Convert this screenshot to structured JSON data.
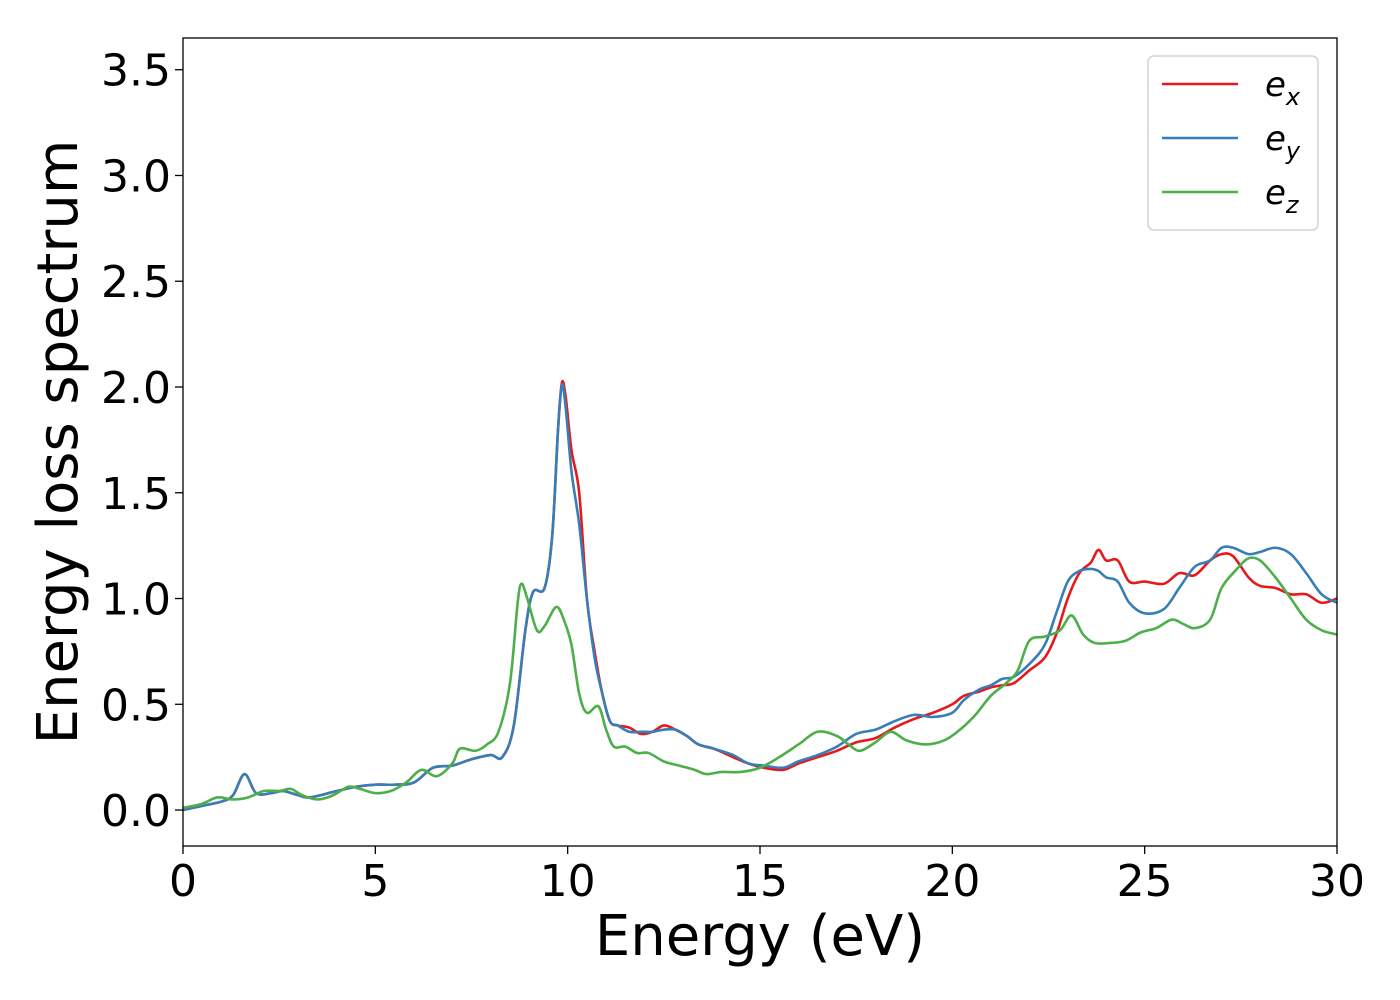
{
  "chart_data": {
    "type": "line",
    "title": "",
    "xlabel": "Energy (eV)",
    "ylabel": "Energy loss spectrum",
    "xlim": [
      0,
      30
    ],
    "ylim": [
      -0.17,
      3.65
    ],
    "xticks": [
      0,
      5,
      10,
      15,
      20,
      25,
      30
    ],
    "xtick_labels": [
      "0",
      "5",
      "10",
      "15",
      "20",
      "25",
      "30"
    ],
    "yticks": [
      0.0,
      0.5,
      1.0,
      1.5,
      2.0,
      2.5,
      3.0,
      3.5
    ],
    "ytick_labels": [
      "0.0",
      "0.5",
      "1.0",
      "1.5",
      "2.0",
      "2.5",
      "3.0",
      "3.5"
    ],
    "grid": false,
    "legend_position": "top-right",
    "series": [
      {
        "name": "e_x",
        "legend_base": "e",
        "legend_sub": "x",
        "color": "#e41a1c",
        "points": [
          [
            0,
            0.0
          ],
          [
            0.5,
            0.02
          ],
          [
            1.0,
            0.04
          ],
          [
            1.3,
            0.07
          ],
          [
            1.6,
            0.17
          ],
          [
            1.9,
            0.08
          ],
          [
            2.3,
            0.08
          ],
          [
            2.6,
            0.09
          ],
          [
            3.0,
            0.07
          ],
          [
            3.3,
            0.06
          ],
          [
            4.0,
            0.09
          ],
          [
            4.5,
            0.11
          ],
          [
            5.0,
            0.12
          ],
          [
            5.5,
            0.12
          ],
          [
            6.0,
            0.13
          ],
          [
            6.5,
            0.2
          ],
          [
            7.0,
            0.21
          ],
          [
            7.5,
            0.24
          ],
          [
            8.0,
            0.26
          ],
          [
            8.3,
            0.25
          ],
          [
            8.6,
            0.4
          ],
          [
            8.9,
            0.85
          ],
          [
            9.1,
            1.03
          ],
          [
            9.4,
            1.05
          ],
          [
            9.6,
            1.3
          ],
          [
            9.75,
            1.8
          ],
          [
            9.85,
            2.02
          ],
          [
            9.95,
            1.95
          ],
          [
            10.1,
            1.7
          ],
          [
            10.3,
            1.5
          ],
          [
            10.5,
            1.0
          ],
          [
            10.7,
            0.75
          ],
          [
            10.9,
            0.55
          ],
          [
            11.1,
            0.42
          ],
          [
            11.3,
            0.4
          ],
          [
            11.6,
            0.39
          ],
          [
            11.9,
            0.36
          ],
          [
            12.2,
            0.37
          ],
          [
            12.5,
            0.4
          ],
          [
            12.8,
            0.38
          ],
          [
            13.1,
            0.35
          ],
          [
            13.4,
            0.31
          ],
          [
            13.8,
            0.29
          ],
          [
            14.3,
            0.25
          ],
          [
            14.7,
            0.22
          ],
          [
            15.1,
            0.2
          ],
          [
            15.6,
            0.19
          ],
          [
            16.0,
            0.22
          ],
          [
            16.5,
            0.25
          ],
          [
            17.0,
            0.28
          ],
          [
            17.5,
            0.32
          ],
          [
            18.0,
            0.34
          ],
          [
            18.5,
            0.39
          ],
          [
            19.0,
            0.43
          ],
          [
            19.5,
            0.46
          ],
          [
            20.0,
            0.5
          ],
          [
            20.3,
            0.54
          ],
          [
            20.7,
            0.56
          ],
          [
            21.0,
            0.58
          ],
          [
            21.3,
            0.59
          ],
          [
            21.6,
            0.6
          ],
          [
            22.0,
            0.66
          ],
          [
            22.4,
            0.72
          ],
          [
            22.7,
            0.83
          ],
          [
            23.0,
            1.0
          ],
          [
            23.3,
            1.12
          ],
          [
            23.6,
            1.17
          ],
          [
            23.8,
            1.23
          ],
          [
            24.0,
            1.18
          ],
          [
            24.3,
            1.18
          ],
          [
            24.6,
            1.08
          ],
          [
            25.0,
            1.08
          ],
          [
            25.5,
            1.07
          ],
          [
            25.9,
            1.12
          ],
          [
            26.3,
            1.11
          ],
          [
            26.7,
            1.18
          ],
          [
            27.0,
            1.21
          ],
          [
            27.3,
            1.2
          ],
          [
            27.7,
            1.1
          ],
          [
            28.0,
            1.06
          ],
          [
            28.4,
            1.05
          ],
          [
            28.8,
            1.02
          ],
          [
            29.2,
            1.02
          ],
          [
            29.6,
            0.98
          ],
          [
            30.0,
            1.0
          ]
        ]
      },
      {
        "name": "e_y",
        "legend_base": "e",
        "legend_sub": "y",
        "color": "#377eb8",
        "points": [
          [
            0,
            0.0
          ],
          [
            0.5,
            0.02
          ],
          [
            1.0,
            0.04
          ],
          [
            1.3,
            0.07
          ],
          [
            1.6,
            0.17
          ],
          [
            1.9,
            0.08
          ],
          [
            2.3,
            0.08
          ],
          [
            2.6,
            0.09
          ],
          [
            3.0,
            0.07
          ],
          [
            3.3,
            0.06
          ],
          [
            4.0,
            0.09
          ],
          [
            4.5,
            0.11
          ],
          [
            5.0,
            0.12
          ],
          [
            5.5,
            0.12
          ],
          [
            6.0,
            0.13
          ],
          [
            6.5,
            0.2
          ],
          [
            7.0,
            0.21
          ],
          [
            7.5,
            0.24
          ],
          [
            8.0,
            0.26
          ],
          [
            8.3,
            0.25
          ],
          [
            8.6,
            0.4
          ],
          [
            8.9,
            0.85
          ],
          [
            9.1,
            1.03
          ],
          [
            9.4,
            1.05
          ],
          [
            9.6,
            1.3
          ],
          [
            9.75,
            1.8
          ],
          [
            9.85,
            2.01
          ],
          [
            9.95,
            1.9
          ],
          [
            10.1,
            1.6
          ],
          [
            10.3,
            1.35
          ],
          [
            10.5,
            1.0
          ],
          [
            10.7,
            0.72
          ],
          [
            10.9,
            0.55
          ],
          [
            11.1,
            0.42
          ],
          [
            11.3,
            0.4
          ],
          [
            11.6,
            0.37
          ],
          [
            11.9,
            0.37
          ],
          [
            12.2,
            0.37
          ],
          [
            12.5,
            0.38
          ],
          [
            12.8,
            0.38
          ],
          [
            13.1,
            0.35
          ],
          [
            13.4,
            0.31
          ],
          [
            13.8,
            0.29
          ],
          [
            14.3,
            0.26
          ],
          [
            14.7,
            0.22
          ],
          [
            15.1,
            0.21
          ],
          [
            15.6,
            0.2
          ],
          [
            16.0,
            0.23
          ],
          [
            16.5,
            0.26
          ],
          [
            17.0,
            0.3
          ],
          [
            17.5,
            0.36
          ],
          [
            18.0,
            0.38
          ],
          [
            18.5,
            0.42
          ],
          [
            19.0,
            0.45
          ],
          [
            19.5,
            0.44
          ],
          [
            20.0,
            0.46
          ],
          [
            20.3,
            0.52
          ],
          [
            20.7,
            0.57
          ],
          [
            21.0,
            0.59
          ],
          [
            21.3,
            0.62
          ],
          [
            21.6,
            0.63
          ],
          [
            22.0,
            0.69
          ],
          [
            22.4,
            0.78
          ],
          [
            22.7,
            0.93
          ],
          [
            23.0,
            1.08
          ],
          [
            23.3,
            1.13
          ],
          [
            23.6,
            1.14
          ],
          [
            23.8,
            1.13
          ],
          [
            24.0,
            1.1
          ],
          [
            24.3,
            1.08
          ],
          [
            24.6,
            0.98
          ],
          [
            25.0,
            0.93
          ],
          [
            25.5,
            0.95
          ],
          [
            25.9,
            1.05
          ],
          [
            26.3,
            1.15
          ],
          [
            26.7,
            1.18
          ],
          [
            27.0,
            1.24
          ],
          [
            27.3,
            1.24
          ],
          [
            27.7,
            1.21
          ],
          [
            28.0,
            1.22
          ],
          [
            28.4,
            1.24
          ],
          [
            28.8,
            1.21
          ],
          [
            29.2,
            1.12
          ],
          [
            29.6,
            1.02
          ],
          [
            30.0,
            0.98
          ]
        ]
      },
      {
        "name": "e_z",
        "legend_base": "e",
        "legend_sub": "z",
        "color": "#4daf4a",
        "points": [
          [
            0,
            0.01
          ],
          [
            0.5,
            0.03
          ],
          [
            0.9,
            0.06
          ],
          [
            1.3,
            0.05
          ],
          [
            1.7,
            0.06
          ],
          [
            2.1,
            0.09
          ],
          [
            2.5,
            0.09
          ],
          [
            2.8,
            0.1
          ],
          [
            3.1,
            0.07
          ],
          [
            3.5,
            0.05
          ],
          [
            3.9,
            0.07
          ],
          [
            4.3,
            0.11
          ],
          [
            4.6,
            0.1
          ],
          [
            5.0,
            0.08
          ],
          [
            5.4,
            0.09
          ],
          [
            5.8,
            0.13
          ],
          [
            6.2,
            0.19
          ],
          [
            6.6,
            0.16
          ],
          [
            7.0,
            0.22
          ],
          [
            7.2,
            0.29
          ],
          [
            7.6,
            0.28
          ],
          [
            7.9,
            0.31
          ],
          [
            8.2,
            0.37
          ],
          [
            8.5,
            0.6
          ],
          [
            8.7,
            0.98
          ],
          [
            8.8,
            1.07
          ],
          [
            8.95,
            1.0
          ],
          [
            9.2,
            0.85
          ],
          [
            9.4,
            0.87
          ],
          [
            9.7,
            0.96
          ],
          [
            9.9,
            0.9
          ],
          [
            10.1,
            0.78
          ],
          [
            10.3,
            0.55
          ],
          [
            10.5,
            0.46
          ],
          [
            10.8,
            0.49
          ],
          [
            11.0,
            0.38
          ],
          [
            11.2,
            0.3
          ],
          [
            11.5,
            0.3
          ],
          [
            11.8,
            0.27
          ],
          [
            12.1,
            0.27
          ],
          [
            12.5,
            0.23
          ],
          [
            12.9,
            0.21
          ],
          [
            13.3,
            0.19
          ],
          [
            13.6,
            0.17
          ],
          [
            14.0,
            0.18
          ],
          [
            14.5,
            0.18
          ],
          [
            15.0,
            0.2
          ],
          [
            15.5,
            0.25
          ],
          [
            16.0,
            0.31
          ],
          [
            16.5,
            0.37
          ],
          [
            17.0,
            0.35
          ],
          [
            17.3,
            0.31
          ],
          [
            17.6,
            0.28
          ],
          [
            18.0,
            0.32
          ],
          [
            18.4,
            0.37
          ],
          [
            18.8,
            0.33
          ],
          [
            19.3,
            0.31
          ],
          [
            19.8,
            0.33
          ],
          [
            20.2,
            0.38
          ],
          [
            20.6,
            0.45
          ],
          [
            21.0,
            0.54
          ],
          [
            21.4,
            0.6
          ],
          [
            21.7,
            0.66
          ],
          [
            22.0,
            0.8
          ],
          [
            22.4,
            0.82
          ],
          [
            22.8,
            0.85
          ],
          [
            23.1,
            0.92
          ],
          [
            23.4,
            0.83
          ],
          [
            23.7,
            0.79
          ],
          [
            24.1,
            0.79
          ],
          [
            24.5,
            0.8
          ],
          [
            24.9,
            0.84
          ],
          [
            25.3,
            0.86
          ],
          [
            25.7,
            0.9
          ],
          [
            26.0,
            0.88
          ],
          [
            26.3,
            0.86
          ],
          [
            26.7,
            0.9
          ],
          [
            27.0,
            1.05
          ],
          [
            27.4,
            1.14
          ],
          [
            27.7,
            1.19
          ],
          [
            28.0,
            1.18
          ],
          [
            28.4,
            1.1
          ],
          [
            28.8,
            1.0
          ],
          [
            29.2,
            0.9
          ],
          [
            29.6,
            0.85
          ],
          [
            30.0,
            0.83
          ]
        ]
      }
    ]
  }
}
